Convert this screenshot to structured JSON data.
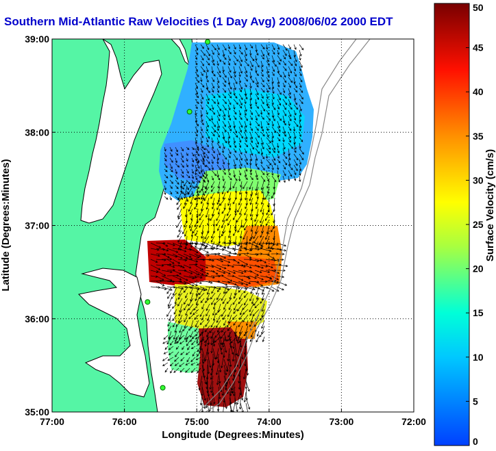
{
  "title": "Southern Mid-Atlantic Raw Velocities (1 Day Avg) 2008/06/02 2000 EDT",
  "map": {
    "x_label": "Longitude (Degrees:Minutes)",
    "y_label": "Latitude (Degrees:Minutes)",
    "x_ticks": [
      "77:00",
      "76:00",
      "75:00",
      "74:00",
      "73:00",
      "72:00"
    ],
    "y_ticks": [
      "39:00",
      "38:00",
      "37:00",
      "36:00",
      "35:00"
    ],
    "lon_range": [
      -77,
      -72
    ],
    "lat_range": [
      35,
      39
    ],
    "grid": "dotted",
    "land_color": "#55f5a5",
    "ocean_color": "#ffffff",
    "stations": [
      {
        "lon": -74.85,
        "lat": 38.97
      },
      {
        "lon": -75.1,
        "lat": 38.22
      },
      {
        "lon": -75.68,
        "lat": 36.18
      },
      {
        "lon": -75.47,
        "lat": 35.26
      }
    ]
  },
  "colorbar": {
    "label": "Surface Velocity (cm/s)",
    "min": 0,
    "max": 50,
    "ticks": [
      "0",
      "5",
      "10",
      "15",
      "20",
      "25",
      "30",
      "35",
      "40",
      "45",
      "50"
    ]
  }
}
